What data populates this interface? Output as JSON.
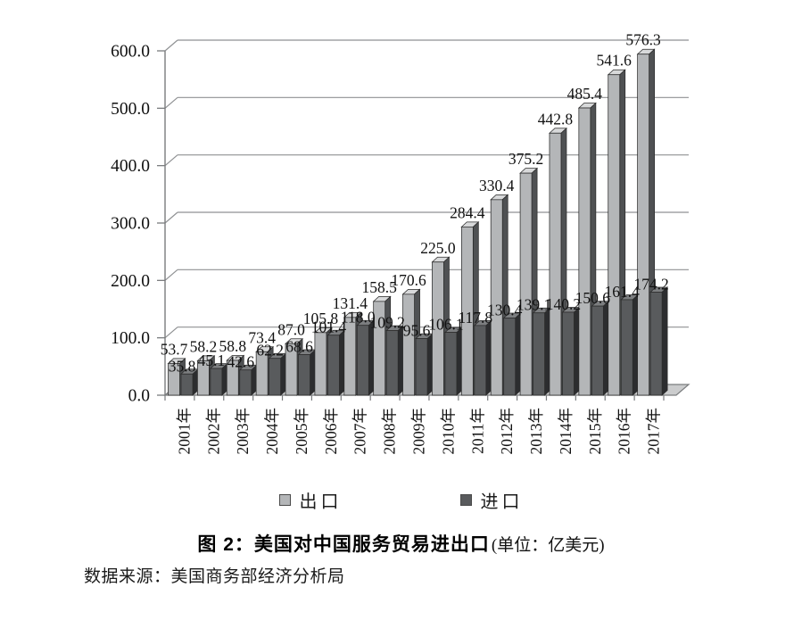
{
  "chart_data": {
    "type": "bar",
    "style": "3d-column",
    "title": "图 2：美国对中国服务贸易进出口",
    "unit_label": "(单位：亿美元)",
    "source": "数据来源：美国商务部经济分析局",
    "categories": [
      "2001年",
      "2002年",
      "2003年",
      "2004年",
      "2005年",
      "2006年",
      "2007年",
      "2008年",
      "2009年",
      "2010年",
      "2011年",
      "2012年",
      "2013年",
      "2014年",
      "2015年",
      "2016年",
      "2017年"
    ],
    "series": [
      {
        "name": "出口",
        "color": "#b4b6b8",
        "side_color": "#4f5153",
        "top_color": "#d8d9da",
        "values": [
          53.7,
          58.2,
          58.8,
          73.4,
          87.0,
          105.8,
          131.4,
          158.5,
          170.6,
          225.0,
          284.4,
          330.4,
          375.2,
          442.8,
          485.4,
          541.6,
          576.3
        ]
      },
      {
        "name": "进口",
        "color": "#595b5d",
        "side_color": "#2c2d2f",
        "top_color": "#7c7e80",
        "values": [
          35.8,
          45.1,
          42.6,
          62.2,
          68.6,
          101.4,
          118.0,
          109.2,
          95.6,
          106.1,
          117.8,
          130.4,
          139.1,
          140.2,
          150.6,
          161.4,
          174.2
        ]
      }
    ],
    "ylim": [
      0,
      600
    ],
    "ytick_step": 100,
    "ytick_labels": [
      "0.0",
      "100.0",
      "200.0",
      "300.0",
      "400.0",
      "500.0",
      "600.0"
    ],
    "grid": true,
    "value_labels": true,
    "legend_position": "bottom",
    "colors": {
      "gridline": "#8f9193",
      "axis": "#7a7c7e",
      "floor_fill": "#cbcccd",
      "bar_outline": "#2b2b2b",
      "label_text": "#111111"
    }
  }
}
